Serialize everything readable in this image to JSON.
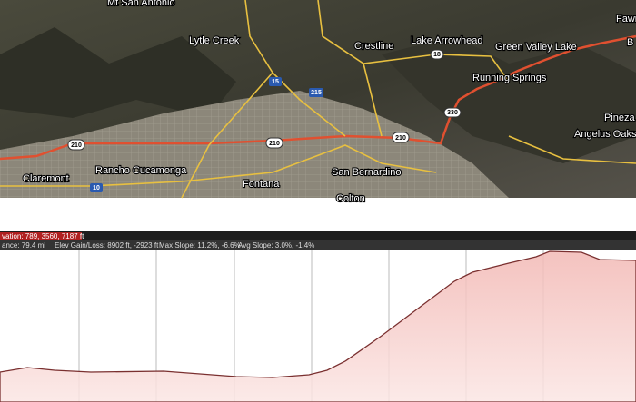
{
  "map": {
    "labels": [
      "Mt San Antonio",
      "Lytle Creek",
      "Crestline",
      "Lake Arrowhead",
      "Green Valley Lake",
      "Running Springs",
      "Pineza",
      "Angelus Oaks",
      "Claremont",
      "Rancho Cucamonga",
      "Fontana",
      "San Bernardino",
      "Colton",
      "Fawn",
      "B"
    ],
    "shields": [
      "15",
      "215",
      "18",
      "330",
      "210",
      "210",
      "210",
      "10"
    ]
  },
  "elevation_bar": {
    "label": "vation: 789, 3560, 7187 ft"
  },
  "stats": [
    "ance: 79.4 mi",
    "Elev Gain/Loss: 8902 ft, -2923 ft",
    "Max Slope: 11.2%, -6.6%",
    "Avg Slope: 3.0%, -1.4%"
  ]
}
